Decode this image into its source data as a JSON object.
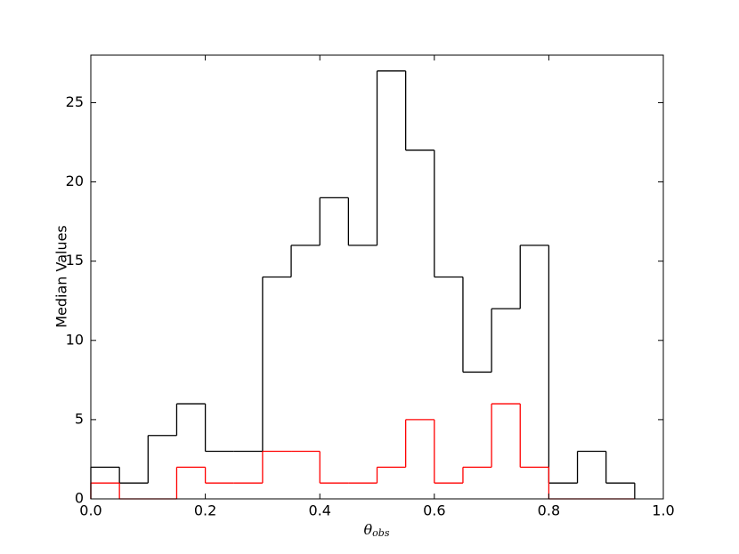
{
  "chart_data": {
    "type": "histogram",
    "ylabel": "Median Values",
    "xlabel": "θ",
    "xlabel_subscript": "obs",
    "bins": [
      0,
      0.05,
      0.1,
      0.15,
      0.2,
      0.25,
      0.3,
      0.35,
      0.4,
      0.45,
      0.5,
      0.55,
      0.6,
      0.65,
      0.7,
      0.75,
      0.8,
      0.85,
      0.9,
      0.95
    ],
    "series": [
      {
        "color": "#000000",
        "values": [
          2,
          1,
          4,
          6,
          3,
          3,
          14,
          16,
          19,
          16,
          27,
          22,
          14,
          8,
          12,
          16,
          1,
          3,
          1
        ]
      },
      {
        "color": "#ff0000",
        "values": [
          1,
          0,
          0,
          2,
          1,
          1,
          3,
          3,
          1,
          1,
          2,
          5,
          1,
          2,
          6,
          2,
          0,
          0,
          0
        ]
      }
    ],
    "xlim": [
      0,
      1
    ],
    "ylim": [
      0,
      28
    ],
    "xticks": [
      {
        "value": 0,
        "label": "0.0"
      },
      0.2,
      0.4,
      0.6,
      0.8,
      {
        "value": 1,
        "label": "1.0"
      }
    ],
    "yticks": [
      0,
      5,
      10,
      15,
      20,
      25
    ]
  }
}
